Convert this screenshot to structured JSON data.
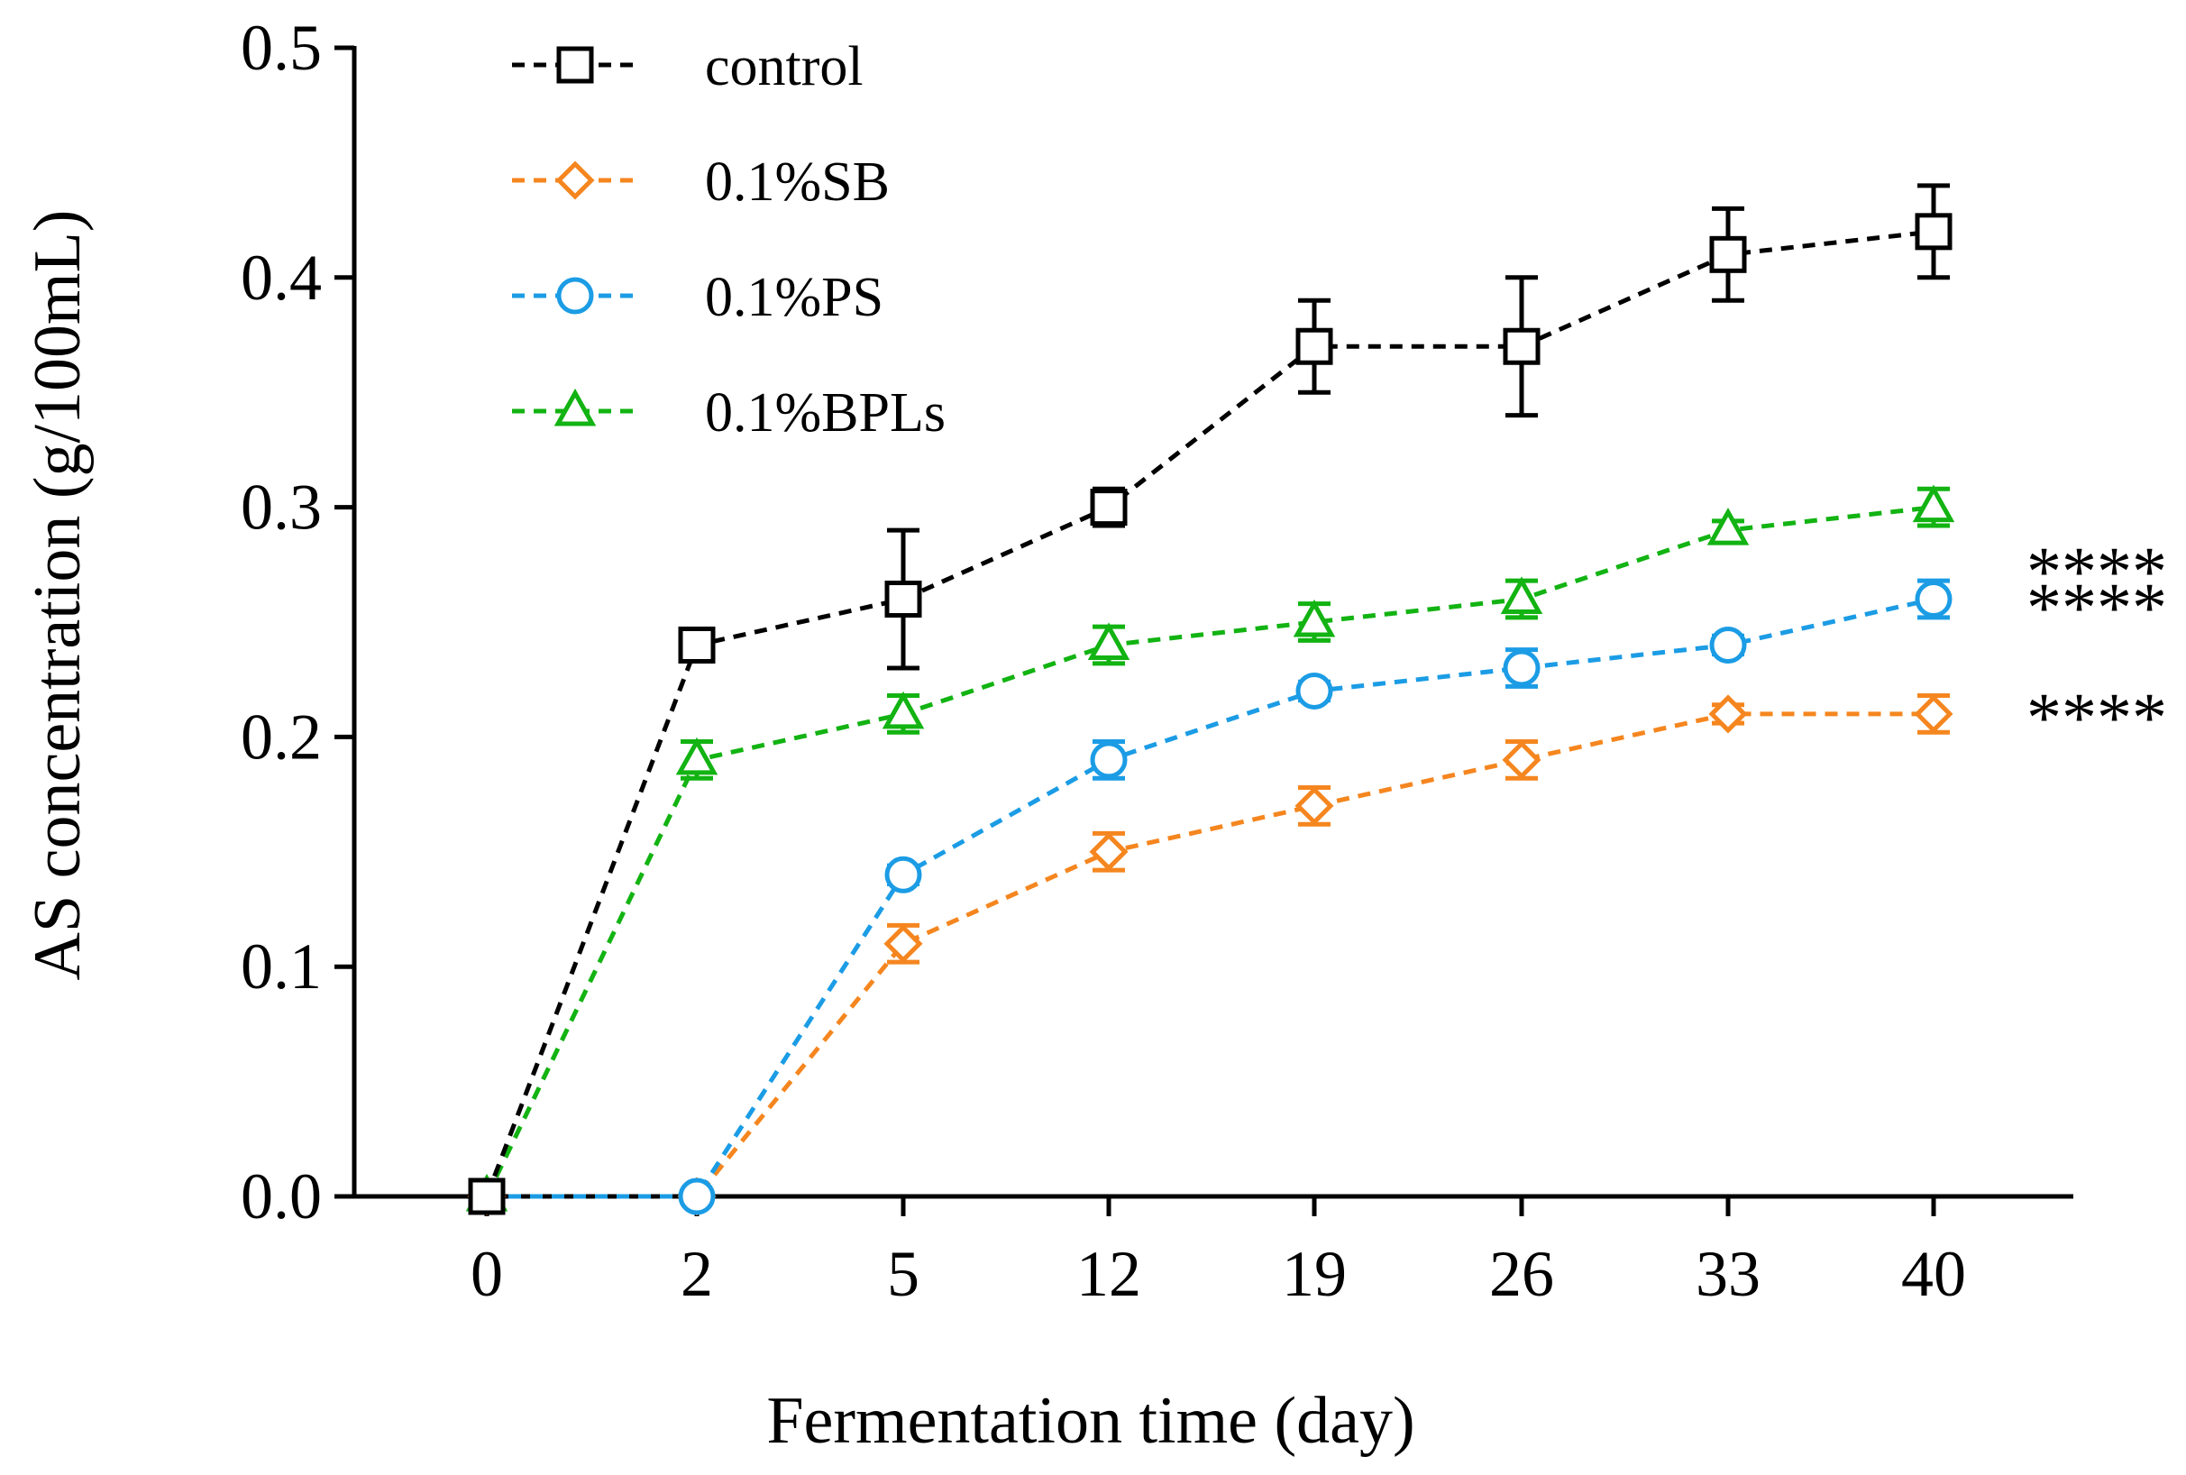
{
  "chart_data": {
    "type": "line",
    "title": "",
    "xlabel": "Fermentation time (day)",
    "ylabel": "AS concentration (g/100mL)",
    "categories": [
      "0",
      "2",
      "5",
      "12",
      "19",
      "26",
      "33",
      "40"
    ],
    "ylim": [
      0,
      0.5
    ],
    "yticks": [
      "0.0",
      "0.1",
      "0.2",
      "0.3",
      "0.4",
      "0.5"
    ],
    "ytick_values": [
      0,
      0.1,
      0.2,
      0.3,
      0.4,
      0.5
    ],
    "grid": false,
    "legend": "top-left",
    "series": [
      {
        "name": "control",
        "color": "#000000",
        "marker": "square",
        "values": [
          0,
          0.24,
          0.26,
          0.3,
          0.37,
          0.37,
          0.41,
          0.42
        ],
        "errors": [
          0,
          0,
          0.03,
          0.008,
          0.02,
          0.03,
          0.02,
          0.02
        ]
      },
      {
        "name": "0.1%SB",
        "color": "#F5861F",
        "marker": "diamond",
        "values": [
          0,
          0,
          0.11,
          0.15,
          0.17,
          0.19,
          0.21,
          0.21
        ],
        "errors": [
          0,
          0,
          0.008,
          0.008,
          0.008,
          0.008,
          0.004,
          0.008
        ]
      },
      {
        "name": "0.1%PS",
        "color": "#1B9CE5",
        "marker": "circle",
        "values": [
          0,
          0,
          0.14,
          0.19,
          0.22,
          0.23,
          0.24,
          0.26
        ],
        "errors": [
          0,
          0,
          0.004,
          0.008,
          0.004,
          0.008,
          0.004,
          0.008
        ]
      },
      {
        "name": "0.1%BPLs",
        "color": "#12B312",
        "marker": "triangle",
        "values": [
          0,
          0.19,
          0.21,
          0.24,
          0.25,
          0.26,
          0.29,
          0.3
        ],
        "errors": [
          0,
          0.008,
          0.008,
          0.008,
          0.008,
          0.008,
          0.004,
          0.008
        ]
      }
    ],
    "annotations": [
      {
        "text": "****",
        "series": "0.1%BPLs"
      },
      {
        "text": "****",
        "series": "0.1%PS"
      },
      {
        "text": "****",
        "series": "0.1%SB"
      }
    ]
  }
}
